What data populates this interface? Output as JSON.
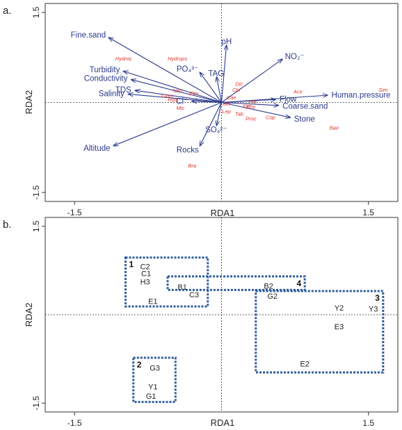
{
  "chart_data": [
    {
      "type": "scatter",
      "panel_label": "a.",
      "xlabel": "RDA1",
      "ylabel": "RDA2",
      "xlim": [
        -1.8,
        1.8
      ],
      "ylim": [
        -1.65,
        1.65
      ],
      "xticks": [
        -1.5,
        1.5
      ],
      "yticks": [
        1.5,
        -1.5
      ],
      "xtick_labels": [
        "-1.5",
        "1.5"
      ],
      "ytick_labels": [
        "1.5",
        "-1.5"
      ],
      "arrow_color": "#2b3a8c",
      "species_color": "#e2312b",
      "env_vectors": [
        {
          "label": "Fine.sand",
          "x": -1.15,
          "y": 1.08
        },
        {
          "label": "pH",
          "x": 0.05,
          "y": 0.95
        },
        {
          "label": "NO₂⁻",
          "x": 0.62,
          "y": 0.72
        },
        {
          "label": "TAG",
          "x": -0.05,
          "y": 0.42
        },
        {
          "label": "PO₄³⁻",
          "x": -0.22,
          "y": 0.5
        },
        {
          "label": "Turbidity",
          "x": -1.0,
          "y": 0.52
        },
        {
          "label": "Conductivity",
          "x": -0.92,
          "y": 0.38
        },
        {
          "label": "TDS",
          "x": -0.88,
          "y": 0.2
        },
        {
          "label": "Salinity",
          "x": -0.95,
          "y": 0.14
        },
        {
          "label": "Cl⁻",
          "x": -0.3,
          "y": 0.02
        },
        {
          "label": "Flow",
          "x": 0.55,
          "y": 0.05
        },
        {
          "label": "Human.pressure",
          "x": 1.08,
          "y": 0.12
        },
        {
          "label": "Coarse.sand",
          "x": 0.58,
          "y": -0.05
        },
        {
          "label": "Stone",
          "x": 0.7,
          "y": -0.25
        },
        {
          "label": "SO₄²⁻",
          "x": -0.05,
          "y": -0.38
        },
        {
          "label": "Rocks",
          "x": -0.22,
          "y": -0.72
        },
        {
          "label": "Altitude",
          "x": -1.1,
          "y": -0.72
        }
      ],
      "species": [
        {
          "label": "Hydroc",
          "x": -1.0,
          "y": 0.7
        },
        {
          "label": "Hydrops",
          "x": -0.45,
          "y": 0.7
        },
        {
          "label": "Ace",
          "x": 0.78,
          "y": 0.15
        },
        {
          "label": "Sim",
          "x": 1.65,
          "y": 0.18
        },
        {
          "label": "Bae",
          "x": 1.15,
          "y": -0.45
        },
        {
          "label": "Bra",
          "x": -0.3,
          "y": -1.08
        },
        {
          "label": "Dic",
          "x": 0.18,
          "y": 0.28
        },
        {
          "label": "Chi",
          "x": 0.15,
          "y": 0.18
        },
        {
          "label": "Cop",
          "x": 0.5,
          "y": -0.28
        },
        {
          "label": "Proc",
          "x": 0.3,
          "y": -0.3
        },
        {
          "label": "Mic",
          "x": -0.42,
          "y": -0.12
        },
        {
          "label": "Tip",
          "x": 0.25,
          "y": -0.1
        },
        {
          "label": "Elm",
          "x": -0.28,
          "y": 0.12
        },
        {
          "label": "Hyd",
          "x": -0.5,
          "y": 0.02
        },
        {
          "label": "Nep",
          "x": -0.45,
          "y": 0.17
        },
        {
          "label": "Gom",
          "x": -0.55,
          "y": 0.08
        },
        {
          "label": "Lep",
          "x": 0.05,
          "y": -0.18
        },
        {
          "label": "Phy",
          "x": 0.3,
          "y": -0.1
        },
        {
          "label": "Tab",
          "x": 0.18,
          "y": -0.22
        },
        {
          "label": "Cae",
          "x": 0.1,
          "y": 0.05
        },
        {
          "label": "Bel",
          "x": 0.05,
          "y": -0.05
        },
        {
          "label": "Per",
          "x": 0.32,
          "y": -0.02
        }
      ]
    },
    {
      "type": "scatter",
      "panel_label": "b.",
      "xlabel": "RDA1",
      "ylabel": "RDA2",
      "xlim": [
        -1.8,
        1.8
      ],
      "ylim": [
        -1.65,
        1.65
      ],
      "xticks": [
        -1.5,
        1.5
      ],
      "yticks": [
        1.5,
        -1.5
      ],
      "xtick_labels": [
        "-1.5",
        "1.5"
      ],
      "ytick_labels": [
        "1.5",
        "-1.5"
      ],
      "group_box_color": "#2e5d9b",
      "sites": [
        {
          "label": "C2",
          "x": -0.78,
          "y": 0.82
        },
        {
          "label": "C1",
          "x": -0.77,
          "y": 0.7
        },
        {
          "label": "H3",
          "x": -0.78,
          "y": 0.56
        },
        {
          "label": "B1",
          "x": -0.4,
          "y": 0.47
        },
        {
          "label": "C3",
          "x": -0.28,
          "y": 0.34
        },
        {
          "label": "E1",
          "x": -0.7,
          "y": 0.23
        },
        {
          "label": "B2",
          "x": 0.48,
          "y": 0.49
        },
        {
          "label": "G2",
          "x": 0.52,
          "y": 0.32
        },
        {
          "label": "Y2",
          "x": 1.2,
          "y": 0.12
        },
        {
          "label": "Y3",
          "x": 1.55,
          "y": 0.1
        },
        {
          "label": "E3",
          "x": 1.2,
          "y": -0.2
        },
        {
          "label": "E2",
          "x": 0.85,
          "y": -0.83
        },
        {
          "label": "G3",
          "x": -0.68,
          "y": -0.9
        },
        {
          "label": "Y1",
          "x": -0.7,
          "y": -1.22
        },
        {
          "label": "G1",
          "x": -0.72,
          "y": -1.38
        }
      ],
      "groups": [
        {
          "label": "1",
          "x_range": [
            -0.98,
            -0.14
          ],
          "y_range": [
            0.14,
            0.97
          ]
        },
        {
          "label": "4",
          "x_range": [
            -0.55,
            0.85
          ],
          "y_range": [
            0.42,
            0.65
          ]
        },
        {
          "label": "3",
          "x_range": [
            0.35,
            1.65
          ],
          "y_range": [
            -0.98,
            0.4
          ]
        },
        {
          "label": "2",
          "x_range": [
            -0.9,
            -0.47
          ],
          "y_range": [
            -1.48,
            -0.73
          ]
        }
      ]
    }
  ]
}
